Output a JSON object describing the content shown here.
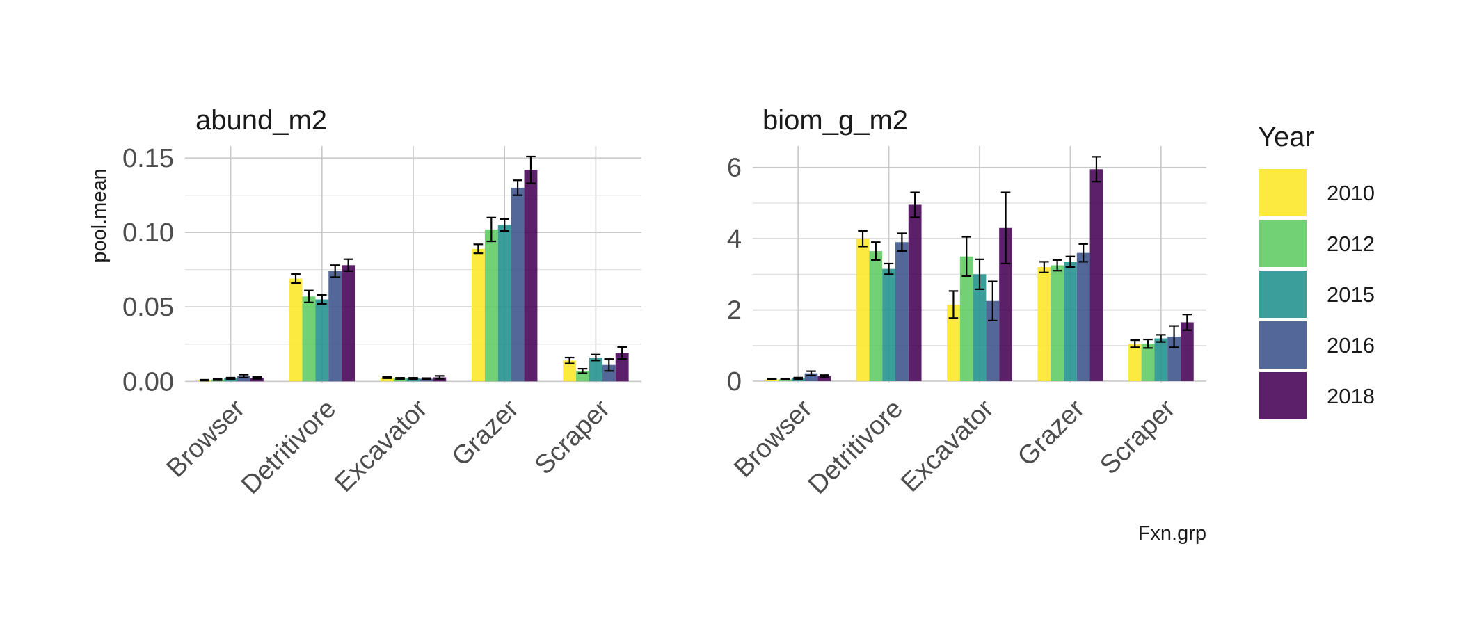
{
  "chart_data": {
    "type": "bar",
    "ylabel": "pool.mean",
    "xlabel": "Fxn.grp",
    "legend": {
      "title": "Year",
      "placement": "right",
      "entries": [
        {
          "label": "2010",
          "color": "#FDE725"
        },
        {
          "label": "2012",
          "color": "#5EC962"
        },
        {
          "label": "2015",
          "color": "#21918C"
        },
        {
          "label": "2016",
          "color": "#3B528B"
        },
        {
          "label": "2018",
          "color": "#440154"
        }
      ]
    },
    "categories": [
      "Browser",
      "Detritivore",
      "Excavator",
      "Grazer",
      "Scraper"
    ],
    "panels": [
      {
        "title": "abund_m2",
        "ylim": [
          -0.0008,
          0.158
        ],
        "yticks": [
          0,
          0.05,
          0.1,
          0.15
        ],
        "ytick_labels": [
          "0.00",
          "0.05",
          "0.10",
          "0.15"
        ],
        "series": [
          {
            "name": "2010",
            "values": [
              0.0008,
              0.069,
              0.0025,
              0.089,
              0.014
            ],
            "errors": [
              0.0003,
              0.003,
              0.0004,
              0.003,
              0.002
            ]
          },
          {
            "name": "2012",
            "values": [
              0.0012,
              0.057,
              0.002,
              0.102,
              0.007
            ],
            "errors": [
              0.0004,
              0.004,
              0.0004,
              0.008,
              0.0015
            ]
          },
          {
            "name": "2015",
            "values": [
              0.002,
              0.055,
              0.002,
              0.105,
              0.016
            ],
            "errors": [
              0.0005,
              0.003,
              0.0004,
              0.004,
              0.002
            ]
          },
          {
            "name": "2016",
            "values": [
              0.0035,
              0.074,
              0.0018,
              0.13,
              0.011
            ],
            "errors": [
              0.001,
              0.004,
              0.0004,
              0.005,
              0.004
            ]
          },
          {
            "name": "2018",
            "values": [
              0.0023,
              0.078,
              0.0027,
              0.142,
              0.019
            ],
            "errors": [
              0.0006,
              0.004,
              0.001,
              0.009,
              0.004
            ]
          }
        ]
      },
      {
        "title": "biom_g_m2",
        "ylim": [
          -0.04,
          6.6
        ],
        "yticks": [
          0,
          2,
          4,
          6
        ],
        "ytick_labels": [
          "0",
          "2",
          "4",
          "6"
        ],
        "series": [
          {
            "name": "2010",
            "values": [
              0.05,
              4.0,
              2.15,
              3.2,
              1.05
            ],
            "errors": [
              0.01,
              0.22,
              0.38,
              0.15,
              0.1
            ]
          },
          {
            "name": "2012",
            "values": [
              0.05,
              3.65,
              3.5,
              3.25,
              1.05
            ],
            "errors": [
              0.01,
              0.25,
              0.55,
              0.15,
              0.12
            ]
          },
          {
            "name": "2015",
            "values": [
              0.08,
              3.15,
              3.0,
              3.35,
              1.2
            ],
            "errors": [
              0.02,
              0.15,
              0.42,
              0.15,
              0.1
            ]
          },
          {
            "name": "2016",
            "values": [
              0.22,
              3.9,
              2.25,
              3.6,
              1.25
            ],
            "errors": [
              0.06,
              0.25,
              0.55,
              0.25,
              0.3
            ]
          },
          {
            "name": "2018",
            "values": [
              0.14,
              4.95,
              4.3,
              5.95,
              1.65
            ],
            "errors": [
              0.03,
              0.35,
              1.0,
              0.35,
              0.22
            ]
          }
        ]
      }
    ]
  }
}
